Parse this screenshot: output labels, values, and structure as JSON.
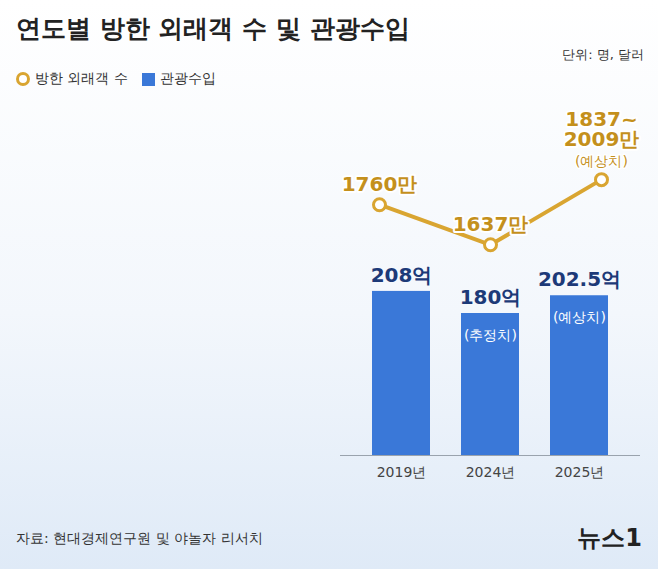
{
  "chart_data": {
    "type": "bar",
    "title": "연도별 방한 외래객 수 및 관광수입",
    "subtitle": "단위: 명, 달러",
    "categories": [
      "2019년",
      "2024년",
      "2025년"
    ],
    "series": [
      {
        "name": "방한 외래객 수",
        "type": "line",
        "axis": "y2",
        "color": "#d9a531",
        "marker": "circle",
        "values": [
          1760,
          1637,
          1837
        ],
        "value_labels": [
          "1760만",
          "1637만",
          "1837~2009만"
        ]
      },
      {
        "name": "관광수입",
        "type": "bar",
        "color": "#3a78d8",
        "values": [
          208,
          180,
          202.5
        ],
        "value_labels": [
          "208억",
          "180억",
          "202.5억"
        ]
      }
    ],
    "annotations": [
      {
        "text": "(추정치)",
        "series": "관광수입",
        "category": "2024년"
      },
      {
        "text": "(예상치)",
        "series": "관광수입",
        "category": "2025년"
      },
      {
        "text": "(예상치)",
        "series": "방한 외래객 수",
        "category": "2025년"
      }
    ],
    "ylim": [
      0,
      450
    ],
    "y2lim": [
      990,
      2080
    ],
    "data_labels": true,
    "tick_labels": "x",
    "legend": "top-left",
    "grid": false
  },
  "source": "자료: 현대경제연구원 및 야놀자 리서치",
  "credit": "뉴스1"
}
